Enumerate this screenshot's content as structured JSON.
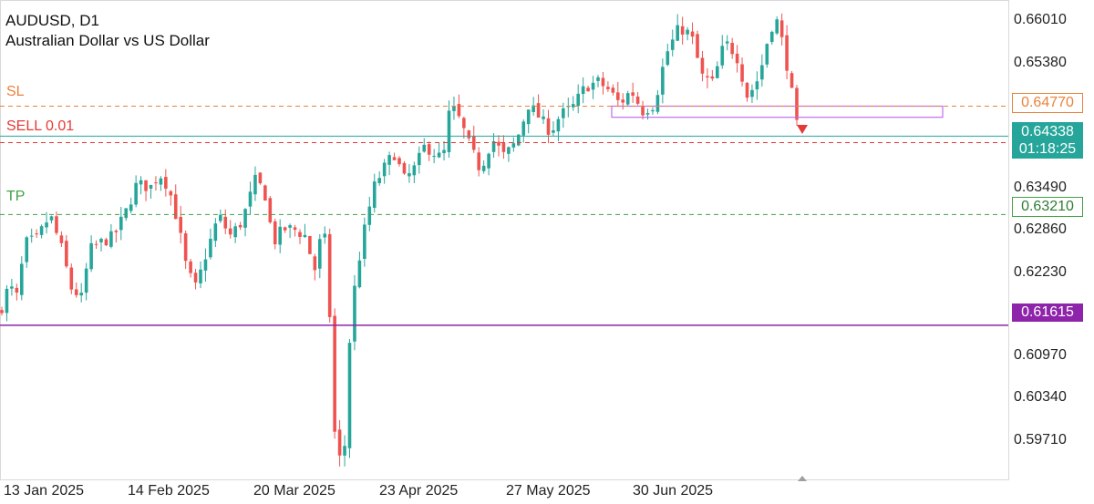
{
  "header": {
    "symbol_line": "AUDUSD, D1",
    "description": "Australian Dollar vs US Dollar"
  },
  "levels": {
    "sl_label": "SL",
    "sl_price": "0.64770",
    "sell_label": "SELL 0.01",
    "current_price": "0.64338",
    "countdown": "01:18:25",
    "tp_label": "TP",
    "tp_price": "0.63210",
    "hline_price": "0.61615"
  },
  "colors": {
    "bull": "#26a69a",
    "bear": "#ef5350",
    "sl": "#e8833a",
    "sell": "#e53935",
    "tp": "#43a047",
    "hline": "#8e24aa",
    "current": "#26a69a",
    "zone": "#c06cf0"
  },
  "chart_data": {
    "type": "candlestick",
    "timeframe": "D1",
    "y_ticks": [
      "0.66010",
      "0.65380",
      "0.63490",
      "0.62860",
      "0.62230",
      "0.60970",
      "0.60340",
      "0.59710"
    ],
    "x_ticks": [
      "13 Jan 2025",
      "14 Feb 2025",
      "20 Mar 2025",
      "23 Apr 2025",
      "27 May 2025",
      "30 Jun 2025"
    ],
    "ylim": [
      0.5935,
      0.6618
    ],
    "zone": {
      "top": 0.6477,
      "bottom": 0.6461
    },
    "close_path": [
      [
        0,
        0.618
      ],
      [
        10,
        0.622
      ],
      [
        18,
        0.62
      ],
      [
        28,
        0.628
      ],
      [
        40,
        0.6285
      ],
      [
        55,
        0.632
      ],
      [
        68,
        0.627
      ],
      [
        78,
        0.6215
      ],
      [
        90,
        0.62
      ],
      [
        98,
        0.627
      ],
      [
        110,
        0.628
      ],
      [
        125,
        0.629
      ],
      [
        140,
        0.633
      ],
      [
        150,
        0.6365
      ],
      [
        165,
        0.636
      ],
      [
        175,
        0.638
      ],
      [
        185,
        0.636
      ],
      [
        195,
        0.631
      ],
      [
        205,
        0.624
      ],
      [
        215,
        0.6215
      ],
      [
        225,
        0.626
      ],
      [
        240,
        0.632
      ],
      [
        252,
        0.629
      ],
      [
        265,
        0.631
      ],
      [
        280,
        0.637
      ],
      [
        290,
        0.6355
      ],
      [
        300,
        0.628
      ],
      [
        310,
        0.63
      ],
      [
        322,
        0.63
      ],
      [
        335,
        0.629
      ],
      [
        345,
        0.624
      ],
      [
        355,
        0.631
      ],
      [
        362,
        0.617
      ],
      [
        368,
        0.598
      ],
      [
        377,
        0.596
      ],
      [
        385,
        0.618
      ],
      [
        393,
        0.625
      ],
      [
        400,
        0.63
      ],
      [
        410,
        0.636
      ],
      [
        420,
        0.6385
      ],
      [
        432,
        0.641
      ],
      [
        444,
        0.637
      ],
      [
        456,
        0.639
      ],
      [
        466,
        0.642
      ],
      [
        476,
        0.641
      ],
      [
        486,
        0.64
      ],
      [
        494,
        0.648
      ],
      [
        505,
        0.6455
      ],
      [
        515,
        0.642
      ],
      [
        527,
        0.6385
      ],
      [
        540,
        0.643
      ],
      [
        553,
        0.6405
      ],
      [
        566,
        0.6425
      ],
      [
        580,
        0.648
      ],
      [
        592,
        0.646
      ],
      [
        604,
        0.644
      ],
      [
        615,
        0.6465
      ],
      [
        628,
        0.6475
      ],
      [
        642,
        0.6505
      ],
      [
        656,
        0.6512
      ],
      [
        668,
        0.65
      ],
      [
        680,
        0.648
      ],
      [
        692,
        0.65
      ],
      [
        705,
        0.647
      ],
      [
        718,
        0.648
      ],
      [
        730,
        0.655
      ],
      [
        745,
        0.659
      ],
      [
        758,
        0.658
      ],
      [
        770,
        0.652
      ],
      [
        782,
        0.651
      ],
      [
        795,
        0.657
      ],
      [
        808,
        0.655
      ],
      [
        820,
        0.649
      ],
      [
        833,
        0.652
      ],
      [
        845,
        0.659
      ],
      [
        852,
        0.66
      ],
      [
        860,
        0.656
      ],
      [
        868,
        0.65
      ],
      [
        875,
        0.644
      ],
      [
        878,
        0.6434
      ]
    ]
  }
}
